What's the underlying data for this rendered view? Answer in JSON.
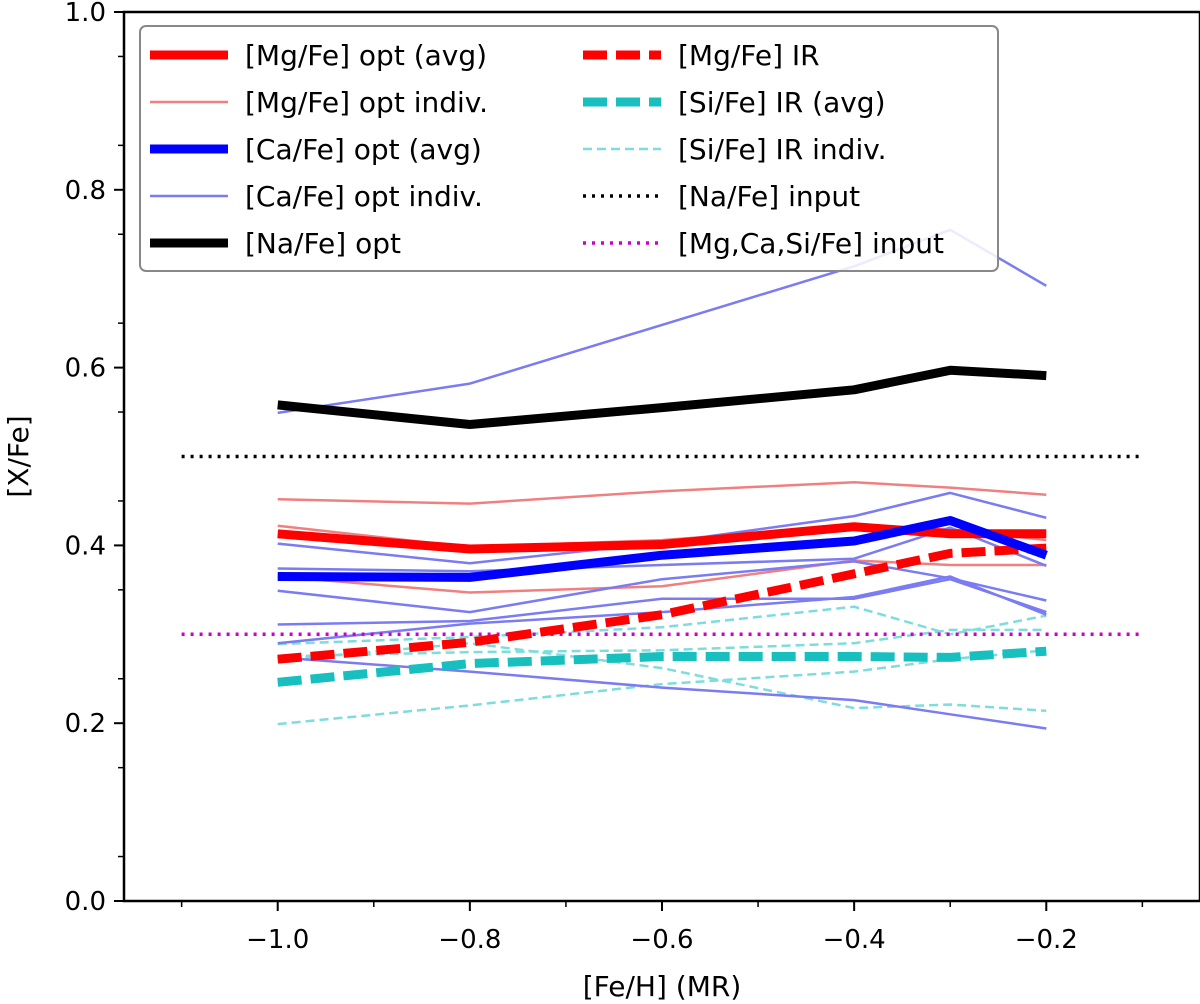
{
  "chart_data": {
    "type": "line",
    "title": "",
    "xlabel": "[Fe/H] (MR)",
    "ylabel": "[X/Fe]",
    "xlim": [
      -1.16,
      -0.04
    ],
    "ylim": [
      0.0,
      1.0
    ],
    "xticks": [
      -1.0,
      -0.8,
      -0.6,
      -0.4,
      -0.2
    ],
    "xtick_labels": [
      "−1.0",
      "−0.8",
      "−0.6",
      "−0.4",
      "−0.2"
    ],
    "yticks": [
      0.0,
      0.2,
      0.4,
      0.6,
      0.8,
      1.0
    ],
    "ytick_labels": [
      "0.0",
      "0.2",
      "0.4",
      "0.6",
      "0.8",
      "1.0"
    ],
    "legend_position": "top-left",
    "legend": [
      {
        "label": "[Mg/Fe] opt (avg)",
        "color": "#ff0000",
        "style": "solid",
        "weight": "thick"
      },
      {
        "label": "[Mg/Fe] opt indiv.",
        "color": "#f08080",
        "style": "solid",
        "weight": "thin"
      },
      {
        "label": "[Ca/Fe] opt (avg)",
        "color": "#0000ff",
        "style": "solid",
        "weight": "thick"
      },
      {
        "label": "[Ca/Fe] opt indiv.",
        "color": "#7b7bf2",
        "style": "solid",
        "weight": "thin"
      },
      {
        "label": "[Na/Fe] opt",
        "color": "#000000",
        "style": "solid",
        "weight": "thick"
      },
      {
        "label": "[Mg/Fe] IR",
        "color": "#ff0000",
        "style": "dashed",
        "weight": "thick"
      },
      {
        "label": "[Si/Fe] IR (avg)",
        "color": "#18bfbf",
        "style": "dashed",
        "weight": "thick"
      },
      {
        "label": "[Si/Fe] IR indiv.",
        "color": "#7fdcdc",
        "style": "dashed",
        "weight": "thin"
      },
      {
        "label": "[Na/Fe] input",
        "color": "#000000",
        "style": "dotted",
        "weight": "medium"
      },
      {
        "label": "[Mg,Ca,Si/Fe] input",
        "color": "#cc00cc",
        "style": "dotted",
        "weight": "medium"
      }
    ],
    "series": [
      {
        "name": "[Mg/Fe] opt indiv. 1",
        "legend_index": 1,
        "x": [
          -1.0,
          -0.8,
          -0.6,
          -0.4,
          -0.3,
          -0.2
        ],
        "values": [
          0.452,
          0.447,
          0.461,
          0.471,
          0.465,
          0.457
        ]
      },
      {
        "name": "[Mg/Fe] opt indiv. 2",
        "legend_index": 1,
        "x": [
          -1.0,
          -0.8,
          -0.6,
          -0.4,
          -0.3,
          -0.2
        ],
        "values": [
          0.422,
          0.398,
          0.406,
          0.422,
          0.418,
          0.406
        ]
      },
      {
        "name": "[Mg/Fe] opt indiv. 3",
        "legend_index": 1,
        "x": [
          -1.0,
          -0.8,
          -0.6,
          -0.4,
          -0.3,
          -0.2
        ],
        "values": [
          0.365,
          0.347,
          0.354,
          0.383,
          0.378,
          0.378
        ]
      },
      {
        "name": "[Si/Fe] IR indiv. 1",
        "legend_index": 7,
        "x": [
          -1.0,
          -0.8,
          -0.6,
          -0.4,
          -0.3,
          -0.2
        ],
        "values": [
          0.289,
          0.297,
          0.308,
          0.331,
          0.3,
          0.321
        ]
      },
      {
        "name": "[Si/Fe] IR indiv. 2",
        "legend_index": 7,
        "x": [
          -1.0,
          -0.8,
          -0.6,
          -0.4,
          -0.3,
          -0.2
        ],
        "values": [
          0.271,
          0.29,
          0.262,
          0.217,
          0.221,
          0.214
        ]
      },
      {
        "name": "[Si/Fe] IR indiv. 3",
        "legend_index": 7,
        "x": [
          -1.0,
          -0.8,
          -0.6,
          -0.4,
          -0.3,
          -0.2
        ],
        "values": [
          0.199,
          0.22,
          0.244,
          0.258,
          0.272,
          0.282
        ]
      },
      {
        "name": "[Si/Fe] IR indiv. 4",
        "legend_index": 7,
        "x": [
          -1.0,
          -0.8,
          -0.6,
          -0.4,
          -0.3,
          -0.2
        ],
        "values": [
          0.275,
          0.28,
          0.282,
          0.29,
          0.305,
          0.305
        ]
      },
      {
        "name": "[Ca/Fe] opt indiv. 1",
        "legend_index": 3,
        "x": [
          -1.0,
          -0.8,
          -0.6,
          -0.4,
          -0.3,
          -0.2
        ],
        "values": [
          0.549,
          0.582,
          0.648,
          0.714,
          0.755,
          0.692
        ]
      },
      {
        "name": "[Ca/Fe] opt indiv. 2",
        "legend_index": 3,
        "x": [
          -1.0,
          -0.8,
          -0.6,
          -0.4,
          -0.3,
          -0.2
        ],
        "values": [
          0.402,
          0.38,
          0.403,
          0.433,
          0.459,
          0.431
        ]
      },
      {
        "name": "[Ca/Fe] opt indiv. 3",
        "legend_index": 3,
        "x": [
          -1.0,
          -0.8,
          -0.6,
          -0.4,
          -0.3,
          -0.2
        ],
        "values": [
          0.374,
          0.371,
          0.378,
          0.385,
          0.42,
          0.377
        ]
      },
      {
        "name": "[Ca/Fe] opt indiv. 4",
        "legend_index": 3,
        "x": [
          -1.0,
          -0.8,
          -0.6,
          -0.4,
          -0.3,
          -0.2
        ],
        "values": [
          0.349,
          0.325,
          0.362,
          0.382,
          0.363,
          0.338
        ]
      },
      {
        "name": "[Ca/Fe] opt indiv. 5",
        "legend_index": 3,
        "x": [
          -1.0,
          -0.8,
          -0.6,
          -0.4,
          -0.3,
          -0.2
        ],
        "values": [
          0.311,
          0.315,
          0.34,
          0.34,
          0.362,
          0.325
        ]
      },
      {
        "name": "[Ca/Fe] opt indiv. 6",
        "legend_index": 3,
        "x": [
          -1.0,
          -0.8,
          -0.6,
          -0.4,
          -0.3,
          -0.2
        ],
        "values": [
          0.29,
          0.312,
          0.325,
          0.342,
          0.365,
          0.322
        ]
      },
      {
        "name": "[Ca/Fe] opt indiv. 7",
        "legend_index": 3,
        "x": [
          -1.0,
          -0.8,
          -0.6,
          -0.4,
          -0.3,
          -0.2
        ],
        "values": [
          0.274,
          0.258,
          0.24,
          0.226,
          0.21,
          0.194
        ]
      },
      {
        "name": "[Na/Fe] input",
        "legend_index": 8,
        "x": [
          -1.1,
          -0.1
        ],
        "values": [
          0.5,
          0.5
        ]
      },
      {
        "name": "[Mg,Ca,Si/Fe] input",
        "legend_index": 9,
        "x": [
          -1.1,
          -0.1
        ],
        "values": [
          0.3,
          0.3
        ]
      },
      {
        "name": "[Si/Fe] IR (avg)",
        "legend_index": 6,
        "x": [
          -1.0,
          -0.8,
          -0.6,
          -0.4,
          -0.3,
          -0.2
        ],
        "values": [
          0.246,
          0.267,
          0.275,
          0.275,
          0.274,
          0.281
        ]
      },
      {
        "name": "[Mg/Fe] IR",
        "legend_index": 5,
        "x": [
          -1.0,
          -0.8,
          -0.6,
          -0.4,
          -0.3,
          -0.2
        ],
        "values": [
          0.272,
          0.291,
          0.322,
          0.368,
          0.391,
          0.397
        ]
      },
      {
        "name": "[Mg/Fe] opt (avg)",
        "legend_index": 0,
        "x": [
          -1.0,
          -0.8,
          -0.6,
          -0.4,
          -0.3,
          -0.2
        ],
        "values": [
          0.413,
          0.396,
          0.401,
          0.421,
          0.413,
          0.413
        ]
      },
      {
        "name": "[Ca/Fe] opt (avg)",
        "legend_index": 2,
        "x": [
          -1.0,
          -0.8,
          -0.6,
          -0.4,
          -0.3,
          -0.2
        ],
        "values": [
          0.365,
          0.364,
          0.389,
          0.405,
          0.428,
          0.389
        ]
      },
      {
        "name": "[Na/Fe] opt",
        "legend_index": 4,
        "x": [
          -1.0,
          -0.8,
          -0.6,
          -0.4,
          -0.3,
          -0.2
        ],
        "values": [
          0.558,
          0.536,
          0.555,
          0.575,
          0.597,
          0.591
        ]
      }
    ]
  }
}
